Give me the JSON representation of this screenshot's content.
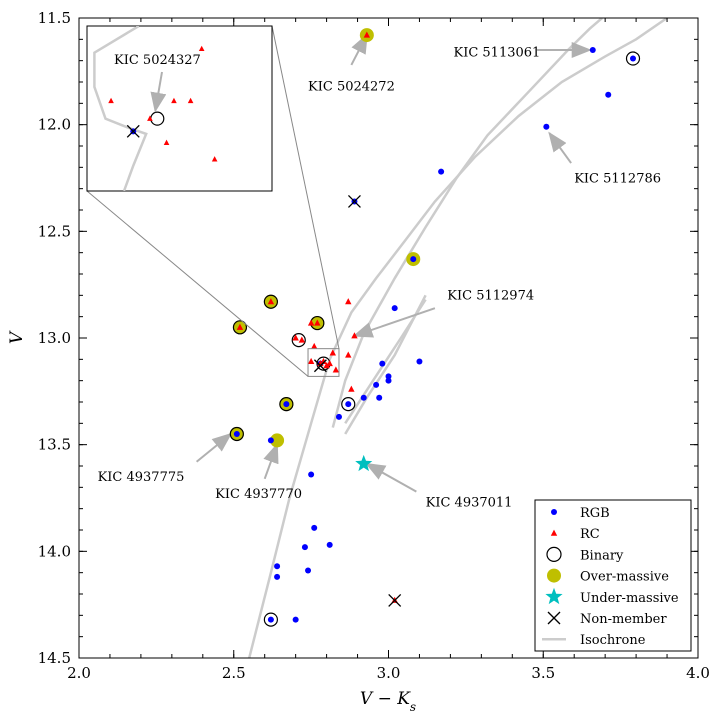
{
  "chart_data": {
    "type": "scatter",
    "title": "",
    "xlabel": "V − K",
    "xlabel_sub": "s",
    "ylabel": "V",
    "xlim": [
      2.0,
      4.0
    ],
    "ylim": [
      14.5,
      11.5
    ],
    "xticks": [
      "2.0",
      "2.5",
      "3.0",
      "3.5",
      "4.0"
    ],
    "xtick_values": [
      2.0,
      2.5,
      3.0,
      3.5,
      4.0
    ],
    "yticks": [
      "11.5",
      "12.0",
      "12.5",
      "13.0",
      "13.5",
      "14.0",
      "14.5"
    ],
    "ytick_values": [
      11.5,
      12.0,
      12.5,
      13.0,
      13.5,
      14.0,
      14.5
    ],
    "colors": {
      "rgb": "#0000ff",
      "rc": "#ff0000",
      "over_massive": "#bfbf00",
      "under_massive": "#00bfbf",
      "isochrone": "#cccccc",
      "arrow": "#b0b0b0"
    },
    "legend": {
      "placement": "lower-right",
      "entries": [
        "RGB",
        "RC",
        "Binary",
        "Over-massive",
        "Under-massive",
        "Non-member",
        "Isochrone"
      ]
    },
    "series": {
      "rgb": [
        [
          3.66,
          11.65
        ],
        [
          3.79,
          11.69
        ],
        [
          3.71,
          11.86
        ],
        [
          3.51,
          12.01
        ],
        [
          3.17,
          12.22
        ],
        [
          2.89,
          12.36
        ],
        [
          3.08,
          12.63
        ],
        [
          3.02,
          12.86
        ],
        [
          2.98,
          13.12
        ],
        [
          3.1,
          13.11
        ],
        [
          3.0,
          13.18
        ],
        [
          3.0,
          13.2
        ],
        [
          2.96,
          13.22
        ],
        [
          2.92,
          13.28
        ],
        [
          2.97,
          13.28
        ],
        [
          2.87,
          13.31
        ],
        [
          2.84,
          13.37
        ],
        [
          2.62,
          13.48
        ],
        [
          2.51,
          13.45
        ],
        [
          2.67,
          13.31
        ],
        [
          2.75,
          13.64
        ],
        [
          2.76,
          13.89
        ],
        [
          2.73,
          13.98
        ],
        [
          2.81,
          13.97
        ],
        [
          2.64,
          14.07
        ],
        [
          2.64,
          14.12
        ],
        [
          2.74,
          14.09
        ],
        [
          2.62,
          14.32
        ],
        [
          2.7,
          14.32
        ],
        [
          2.78,
          13.12
        ]
      ],
      "rc": [
        [
          2.93,
          11.58
        ],
        [
          2.62,
          12.83
        ],
        [
          2.52,
          12.95
        ],
        [
          2.77,
          12.93
        ],
        [
          2.87,
          12.83
        ],
        [
          2.75,
          12.93
        ],
        [
          2.89,
          12.99
        ],
        [
          2.7,
          13.0
        ],
        [
          2.72,
          13.01
        ],
        [
          2.76,
          13.04
        ],
        [
          2.82,
          13.07
        ],
        [
          2.87,
          13.08
        ],
        [
          2.75,
          13.11
        ],
        [
          2.78,
          13.12
        ],
        [
          2.8,
          13.13
        ],
        [
          2.81,
          13.12
        ],
        [
          2.79,
          13.11
        ],
        [
          2.83,
          13.15
        ],
        [
          2.88,
          13.24
        ],
        [
          2.92,
          13.59
        ],
        [
          3.02,
          14.23
        ]
      ],
      "binary": [
        [
          3.79,
          11.69
        ],
        [
          2.71,
          13.01
        ],
        [
          2.79,
          13.12
        ],
        [
          2.87,
          13.31
        ],
        [
          2.51,
          13.45
        ],
        [
          2.62,
          14.32
        ],
        [
          2.62,
          12.83
        ],
        [
          2.52,
          12.95
        ],
        [
          2.77,
          12.93
        ],
        [
          2.67,
          13.31
        ]
      ],
      "over_massive": [
        [
          2.93,
          11.58
        ],
        [
          3.08,
          12.63
        ],
        [
          2.62,
          12.83
        ],
        [
          2.52,
          12.95
        ],
        [
          2.77,
          12.93
        ],
        [
          2.67,
          13.31
        ],
        [
          2.51,
          13.45
        ],
        [
          2.64,
          13.48
        ]
      ],
      "under_massive": [
        [
          2.92,
          13.59
        ]
      ],
      "non_member": [
        [
          2.89,
          12.36
        ],
        [
          2.78,
          13.13
        ],
        [
          3.02,
          14.23
        ]
      ],
      "isochrone": [
        [
          [
            2.55,
            14.5
          ],
          [
            2.62,
            14.1
          ],
          [
            2.68,
            13.75
          ],
          [
            2.75,
            13.4
          ],
          [
            2.81,
            13.1
          ],
          [
            2.88,
            12.88
          ],
          [
            2.96,
            12.72
          ],
          [
            3.05,
            12.55
          ],
          [
            3.15,
            12.36
          ],
          [
            3.28,
            12.15
          ],
          [
            3.42,
            11.96
          ],
          [
            3.56,
            11.8
          ],
          [
            3.7,
            11.68
          ],
          [
            3.8,
            11.6
          ],
          [
            3.9,
            11.5
          ]
        ],
        [
          [
            2.82,
            13.42
          ],
          [
            2.86,
            13.2
          ],
          [
            2.92,
            12.98
          ],
          [
            3.02,
            12.72
          ],
          [
            3.12,
            12.48
          ],
          [
            3.22,
            12.25
          ],
          [
            3.32,
            12.05
          ],
          [
            3.45,
            11.85
          ],
          [
            3.58,
            11.65
          ],
          [
            3.65,
            11.55
          ],
          [
            3.69,
            11.5
          ]
        ],
        [
          [
            2.86,
            13.45
          ],
          [
            2.93,
            13.28
          ],
          [
            3.02,
            13.08
          ],
          [
            3.12,
            12.8
          ]
        ],
        [
          [
            2.86,
            13.4
          ],
          [
            2.95,
            13.2
          ],
          [
            3.04,
            13.0
          ],
          [
            3.12,
            12.82
          ]
        ]
      ]
    },
    "annotations": [
      {
        "label": "KIC 5024272",
        "target": [
          2.93,
          11.58
        ],
        "text_at": [
          2.74,
          11.84
        ],
        "arrow_from": [
          2.88,
          11.72
        ]
      },
      {
        "label": "KIC 5113061",
        "target": [
          3.65,
          11.65
        ],
        "text_at": [
          3.21,
          11.68
        ],
        "arrow_from": [
          3.48,
          11.65
        ]
      },
      {
        "label": "KIC 5112786",
        "target": [
          3.52,
          12.04
        ],
        "text_at": [
          3.6,
          12.27
        ],
        "arrow_from": [
          3.59,
          12.18
        ]
      },
      {
        "label": "KIC 5112974",
        "target": [
          2.89,
          12.99
        ],
        "text_at": [
          3.19,
          12.82
        ],
        "arrow_from": [
          3.15,
          12.86
        ]
      },
      {
        "label": "KIC 4937775",
        "target": [
          2.49,
          13.45
        ],
        "text_at": [
          2.06,
          13.67
        ],
        "arrow_from": [
          2.38,
          13.58
        ]
      },
      {
        "label": "KIC 4937770",
        "target": [
          2.64,
          13.5
        ],
        "text_at": [
          2.44,
          13.75
        ],
        "arrow_from": [
          2.6,
          13.66
        ]
      },
      {
        "label": "KIC 4937011",
        "target": [
          2.93,
          13.59
        ],
        "text_at": [
          3.12,
          13.79
        ],
        "arrow_from": [
          3.09,
          13.72
        ]
      }
    ],
    "inset": {
      "label": "KIC 5024327",
      "xlim": [
        2.74,
        2.84
      ],
      "ylim": [
        13.18,
        13.05
      ],
      "rc": [
        [
          2.753,
          13.109
        ],
        [
          2.774,
          13.123
        ],
        [
          2.778,
          13.109
        ],
        [
          2.787,
          13.109
        ],
        [
          2.796,
          13.109
        ],
        [
          2.802,
          13.068
        ],
        [
          2.783,
          13.142
        ],
        [
          2.809,
          13.155
        ]
      ],
      "binary": [
        [
          2.778,
          13.123
        ]
      ],
      "rgb": [
        [
          2.765,
          13.133
        ]
      ],
      "non_member": [
        [
          2.765,
          13.133
        ]
      ],
      "isochrone": [
        [
          [
            2.768,
            13.05
          ],
          [
            2.744,
            13.071
          ],
          [
            2.744,
            13.098
          ],
          [
            2.75,
            13.123
          ],
          [
            2.762,
            13.13
          ],
          [
            2.772,
            13.135
          ],
          [
            2.765,
            13.16
          ],
          [
            2.76,
            13.18
          ]
        ]
      ]
    }
  }
}
